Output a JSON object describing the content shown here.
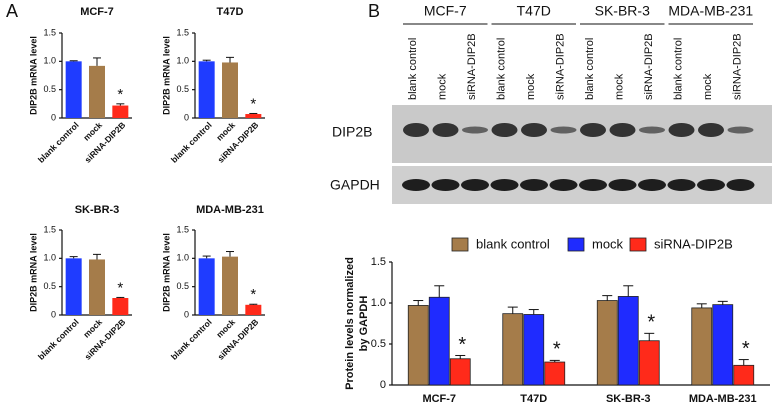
{
  "figure": {
    "panels": [
      "A",
      "B"
    ],
    "blot": {
      "groups": [
        "MCF-7",
        "T47D",
        "SK-BR-3",
        "MDA-MB-231"
      ],
      "lanes": [
        "blank control",
        "mock",
        "siRNA-DIP2B"
      ],
      "rows": [
        "DIP2B",
        "GAPDH"
      ]
    }
  },
  "chart_data": [
    {
      "type": "bar",
      "title": "MCF-7",
      "ylabel": "DIP2B mRNA level",
      "categories": [
        "blank control",
        "mock",
        "siRNA-DIP2B"
      ],
      "colors": [
        "#1f3cff",
        "#a57c4a",
        "#ff2a1a"
      ],
      "values": [
        1.0,
        0.92,
        0.22
      ],
      "errors": [
        0.01,
        0.14,
        0.03
      ],
      "significance": [
        null,
        null,
        "*"
      ],
      "ylim": [
        0,
        1.5
      ],
      "yticks": [
        0,
        0.5,
        {
          "value": 1,
          "label": "1.0"
        },
        1.5
      ]
    },
    {
      "type": "bar",
      "title": "T47D",
      "ylabel": "DIP2B mRNA level",
      "categories": [
        "blank control",
        "mock",
        "siRNA-DIP2B"
      ],
      "colors": [
        "#1f3cff",
        "#a57c4a",
        "#ff2a1a"
      ],
      "values": [
        1.0,
        0.98,
        0.07
      ],
      "errors": [
        0.02,
        0.09,
        0.01
      ],
      "significance": [
        null,
        null,
        "*"
      ],
      "ylim": [
        0,
        1.5
      ],
      "yticks": [
        0,
        0.5,
        {
          "value": 1,
          "label": "1.0"
        },
        1.5
      ]
    },
    {
      "type": "bar",
      "title": "SK-BR-3",
      "ylabel": "DIP2B mRNA level",
      "categories": [
        "blank control",
        "mock",
        "siRNA-DIP2B"
      ],
      "colors": [
        "#1f3cff",
        "#a57c4a",
        "#ff2a1a"
      ],
      "values": [
        1.0,
        0.98,
        0.3
      ],
      "errors": [
        0.03,
        0.09,
        0.01
      ],
      "significance": [
        null,
        null,
        "*"
      ],
      "ylim": [
        0,
        1.5
      ],
      "yticks": [
        0,
        0.5,
        {
          "value": 1,
          "label": "1.0"
        },
        1.5
      ]
    },
    {
      "type": "bar",
      "title": "MDA-MB-231",
      "ylabel": "DIP2B mRNA level",
      "categories": [
        "blank control",
        "mock",
        "siRNA-DIP2B"
      ],
      "colors": [
        "#1f3cff",
        "#a57c4a",
        "#ff2a1a"
      ],
      "values": [
        1.0,
        1.03,
        0.18
      ],
      "errors": [
        0.04,
        0.09,
        0.01
      ],
      "significance": [
        null,
        null,
        "*"
      ],
      "ylim": [
        0,
        1.5
      ],
      "yticks": [
        0,
        0.5,
        {
          "value": 1,
          "label": "1.0"
        },
        1.5
      ]
    },
    {
      "type": "grouped_bar",
      "ylabel": [
        "Protein levels normalized",
        "by GAPDH"
      ],
      "categories": [
        "MCF-7",
        "T47D",
        "SK-BR-3",
        "MDA-MB-231"
      ],
      "series": [
        {
          "name": "blank control",
          "color": "#a57c4a",
          "values": [
            0.97,
            0.87,
            1.03,
            0.94
          ],
          "errors": [
            0.06,
            0.08,
            0.06,
            0.05
          ]
        },
        {
          "name": "mock",
          "color": "#1f2bff",
          "values": [
            1.07,
            0.86,
            1.08,
            0.98
          ],
          "errors": [
            0.14,
            0.06,
            0.13,
            0.04
          ]
        },
        {
          "name": "siRNA-DIP2B",
          "color": "#ff2a1a",
          "values": [
            0.32,
            0.28,
            0.54,
            0.24
          ],
          "errors": [
            0.04,
            0.02,
            0.09,
            0.07
          ],
          "significance": [
            "*",
            "*",
            "*",
            "*"
          ]
        }
      ],
      "ylim": [
        0,
        1.5
      ],
      "yticks": [
        0,
        0.5,
        {
          "value": 1,
          "label": "1.0"
        },
        1.5
      ],
      "legend": "top"
    }
  ]
}
